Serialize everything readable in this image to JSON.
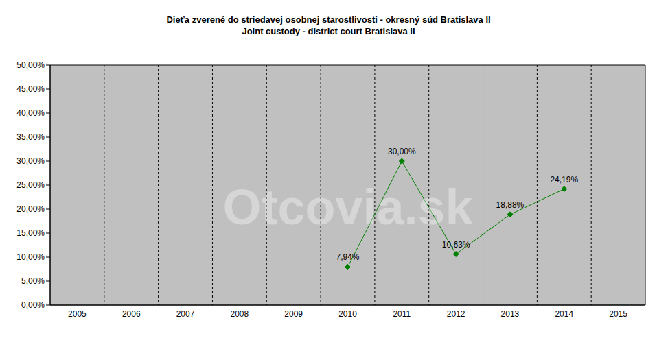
{
  "chart_data": {
    "type": "line",
    "title": "Dieťa zverené do striedavej osobnej starostlivosti - okresný súd Bratislava II",
    "subtitle": "Joint custody - district court Bratislava II",
    "annotations": [
      "Otcovia.sk"
    ],
    "categories": [
      "2005",
      "2006",
      "2007",
      "2008",
      "2009",
      "2010",
      "2011",
      "2012",
      "2013",
      "2014",
      "2015"
    ],
    "values": [
      null,
      null,
      null,
      null,
      null,
      7.94,
      30.0,
      10.63,
      18.88,
      24.19,
      null
    ],
    "value_labels": [
      null,
      null,
      null,
      null,
      null,
      "7,94%",
      "30,00%",
      "10,63%",
      "18,88%",
      "24,19%",
      null
    ],
    "color": "#008000",
    "marker": "diamond",
    "data_labels": true,
    "grid": true,
    "ylim": [
      0,
      50
    ],
    "yticks": [
      {
        "value": 0,
        "label": "0,00%"
      },
      {
        "value": 5,
        "label": "5,00%"
      },
      {
        "value": 10,
        "label": "10,00%"
      },
      {
        "value": 15,
        "label": "15,00%"
      },
      {
        "value": 20,
        "label": "20,00%"
      },
      {
        "value": 25,
        "label": "25,00%"
      },
      {
        "value": 30,
        "label": "30,00%"
      },
      {
        "value": 35,
        "label": "35,00%"
      },
      {
        "value": 40,
        "label": "40,00%"
      },
      {
        "value": 45,
        "label": "45,00%"
      },
      {
        "value": 50,
        "label": "50,00%"
      }
    ]
  }
}
